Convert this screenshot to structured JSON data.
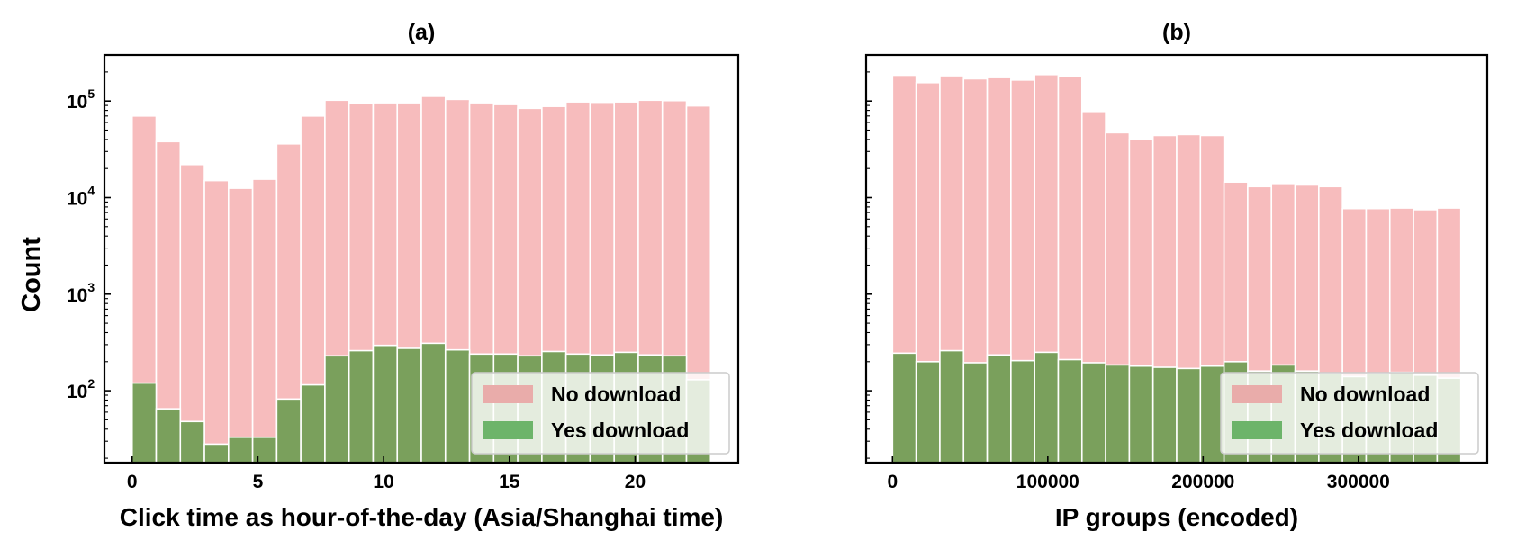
{
  "figure": {
    "ylabel": "Count",
    "legend_labels": [
      "No download",
      "Yes download"
    ],
    "colors": {
      "no_download": "#f7bcbd",
      "yes_download": "#7aa05c",
      "bar_edge": "#ffffff",
      "legend_no_patch": "#e9acaa",
      "legend_yes_patch": "#6db46a"
    }
  },
  "chart_data": [
    {
      "type": "bar",
      "title": "(a)",
      "xlabel": "Click time as hour-of-the-day (Asia/Shanghai time)",
      "ylabel": "Count",
      "yscale": "log",
      "ylim": [
        18,
        300000
      ],
      "xlim": [
        -1.1,
        24.1
      ],
      "xticks": [
        0,
        5,
        10,
        15,
        20
      ],
      "xtick_labels": [
        "0",
        "5",
        "10",
        "15",
        "20"
      ],
      "legend": "lower-right",
      "bin_edges": [
        0,
        0.958,
        1.917,
        2.875,
        3.833,
        4.792,
        5.75,
        6.708,
        7.667,
        8.625,
        9.583,
        10.542,
        11.5,
        12.458,
        13.417,
        14.375,
        15.333,
        16.292,
        17.25,
        18.208,
        19.167,
        20.125,
        21.083,
        22.042,
        23
      ],
      "series": [
        {
          "name": "No download",
          "values": [
            70000,
            38000,
            22000,
            15000,
            12500,
            15500,
            36000,
            70000,
            102000,
            95000,
            96000,
            96000,
            112000,
            104000,
            96000,
            92000,
            84000,
            88000,
            98000,
            97000,
            98000,
            102000,
            101000,
            89000
          ]
        },
        {
          "name": "Yes download",
          "values": [
            120,
            65,
            48,
            28,
            33,
            33,
            82,
            115,
            230,
            260,
            295,
            275,
            310,
            265,
            240,
            240,
            230,
            255,
            240,
            235,
            250,
            235,
            230,
            130
          ]
        }
      ]
    },
    {
      "type": "bar",
      "title": "(b)",
      "xlabel": "IP groups (encoded)",
      "ylabel": "",
      "yscale": "log",
      "ylim": [
        18,
        300000
      ],
      "xlim": [
        -17000,
        383000
      ],
      "xticks": [
        0,
        100000,
        200000,
        300000
      ],
      "xtick_labels": [
        "0",
        "100000",
        "200000",
        "300000"
      ],
      "legend": "lower-right",
      "bin_edges": [
        0,
        15250,
        30500,
        45750,
        61000,
        76250,
        91500,
        106750,
        122000,
        137250,
        152500,
        167750,
        183000,
        198250,
        213500,
        228750,
        244000,
        259250,
        274500,
        289750,
        305000,
        320250,
        335500,
        350750,
        366000
      ],
      "series": [
        {
          "name": "No download",
          "values": [
            185000,
            155000,
            183000,
            170000,
            175000,
            165000,
            188000,
            180000,
            78000,
            47000,
            40000,
            44000,
            45000,
            44000,
            14500,
            13000,
            14000,
            13500,
            13000,
            7700,
            7700,
            7800,
            7500,
            7800
          ]
        },
        {
          "name": "Yes download",
          "values": [
            245,
            200,
            260,
            195,
            235,
            205,
            250,
            210,
            195,
            185,
            180,
            175,
            170,
            180,
            200,
            160,
            185,
            160,
            150,
            140,
            150,
            155,
            145,
            135
          ]
        }
      ]
    }
  ]
}
